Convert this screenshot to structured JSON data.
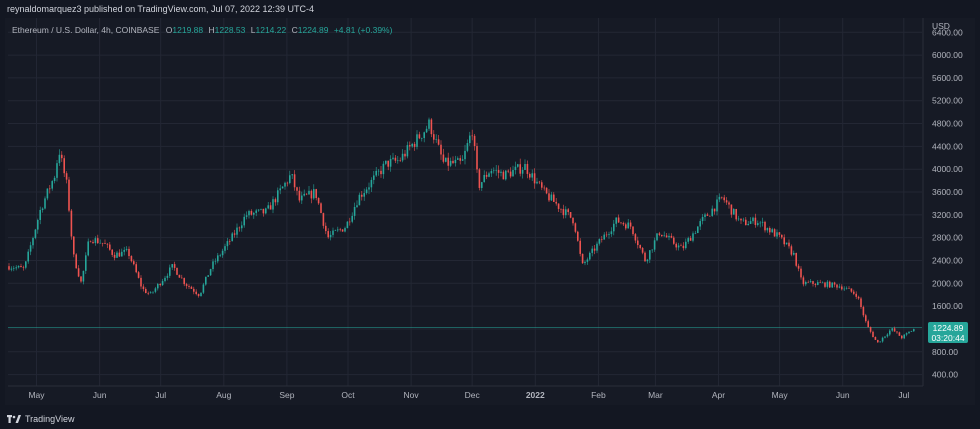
{
  "header": {
    "published_line": "reynaldomarquez3 published on TradingView.com, Jul 07, 2022 12:39 UTC-4"
  },
  "legend": {
    "symbol": "Ethereum / U.S. Dollar, 4h, COINBASE",
    "o_label": "O",
    "o_value": "1219.88",
    "h_label": "H",
    "h_value": "1228.53",
    "l_label": "L",
    "l_value": "1214.22",
    "c_label": "C",
    "c_value": "1224.89",
    "change": "+4.81 (+0.39%)"
  },
  "price_tag": {
    "price": "1224.89",
    "countdown": "03:20:44"
  },
  "footer": {
    "brand": "TradingView"
  },
  "colors": {
    "up": "#26a69a",
    "down": "#ef5350",
    "background": "#131722",
    "grid": "#232734"
  },
  "chart_data": {
    "type": "candlestick",
    "currency_label": "USD",
    "y_ticks": [
      400,
      800,
      1200,
      1600,
      2000,
      2400,
      2800,
      3200,
      3600,
      4000,
      4400,
      4800,
      5200,
      5600,
      6000,
      6400
    ],
    "y_tick_labels": [
      "400.00",
      "800.00",
      "",
      "1600.00",
      "2000.00",
      "2400.00",
      "2800.00",
      "3200.00",
      "3600.00",
      "4000.00",
      "4400.00",
      "4800.00",
      "5200.00",
      "5600.00",
      "6000.00",
      "6400.00"
    ],
    "ylim": [
      200,
      6650
    ],
    "x_labels": [
      "May",
      "Jun",
      "Jul",
      "Aug",
      "Sep",
      "Oct",
      "Nov",
      "Dec",
      "2022",
      "Feb",
      "Mar",
      "Apr",
      "May",
      "Jun",
      "Jul"
    ],
    "x_label_dates": [
      "2021-05-01",
      "2021-06-01",
      "2021-07-01",
      "2021-08-01",
      "2021-09-01",
      "2021-10-01",
      "2021-11-01",
      "2021-12-01",
      "2022-01-01",
      "2022-02-01",
      "2022-03-01",
      "2022-04-01",
      "2022-05-01",
      "2022-06-01",
      "2022-07-01"
    ],
    "x_range": [
      "2021-04-17",
      "2022-07-07"
    ],
    "last_price": 1224.89,
    "price_path": [
      [
        "2021-04-17",
        2300
      ],
      [
        "2021-04-25",
        2250
      ],
      [
        "2021-05-03",
        3300
      ],
      [
        "2021-05-10",
        3900
      ],
      [
        "2021-05-12",
        4350
      ],
      [
        "2021-05-16",
        3700
      ],
      [
        "2021-05-19",
        2500
      ],
      [
        "2021-05-23",
        2000
      ],
      [
        "2021-05-27",
        2800
      ],
      [
        "2021-06-03",
        2700
      ],
      [
        "2021-06-08",
        2500
      ],
      [
        "2021-06-15",
        2550
      ],
      [
        "2021-06-22",
        1900
      ],
      [
        "2021-06-26",
        1800
      ],
      [
        "2021-07-07",
        2300
      ],
      [
        "2021-07-13",
        2000
      ],
      [
        "2021-07-20",
        1800
      ],
      [
        "2021-07-26",
        2300
      ],
      [
        "2021-08-05",
        2800
      ],
      [
        "2021-08-12",
        3200
      ],
      [
        "2021-08-22",
        3250
      ],
      [
        "2021-09-03",
        3900
      ],
      [
        "2021-09-07",
        3450
      ],
      [
        "2021-09-15",
        3600
      ],
      [
        "2021-09-21",
        2800
      ],
      [
        "2021-09-30",
        3000
      ],
      [
        "2021-10-06",
        3500
      ],
      [
        "2021-10-20",
        4100
      ],
      [
        "2021-10-26",
        4150
      ],
      [
        "2021-11-08",
        4700
      ],
      [
        "2021-11-10",
        4800
      ],
      [
        "2021-11-17",
        4100
      ],
      [
        "2021-11-26",
        4100
      ],
      [
        "2021-12-01",
        4700
      ],
      [
        "2021-12-04",
        3700
      ],
      [
        "2021-12-10",
        4000
      ],
      [
        "2021-12-17",
        3900
      ],
      [
        "2021-12-27",
        4050
      ],
      [
        "2022-01-05",
        3600
      ],
      [
        "2022-01-14",
        3300
      ],
      [
        "2022-01-20",
        3100
      ],
      [
        "2022-01-24",
        2300
      ],
      [
        "2022-02-01",
        2700
      ],
      [
        "2022-02-10",
        3100
      ],
      [
        "2022-02-17",
        3000
      ],
      [
        "2022-02-24",
        2400
      ],
      [
        "2022-03-03",
        2900
      ],
      [
        "2022-03-14",
        2600
      ],
      [
        "2022-03-24",
        3100
      ],
      [
        "2022-04-03",
        3500
      ],
      [
        "2022-04-12",
        3050
      ],
      [
        "2022-04-20",
        3100
      ],
      [
        "2022-05-01",
        2800
      ],
      [
        "2022-05-08",
        2500
      ],
      [
        "2022-05-12",
        2000
      ],
      [
        "2022-05-20",
        2000
      ],
      [
        "2022-05-31",
        1950
      ],
      [
        "2022-06-08",
        1800
      ],
      [
        "2022-06-13",
        1250
      ],
      [
        "2022-06-18",
        950
      ],
      [
        "2022-06-25",
        1200
      ],
      [
        "2022-06-30",
        1050
      ],
      [
        "2022-07-07",
        1224.89
      ]
    ]
  }
}
